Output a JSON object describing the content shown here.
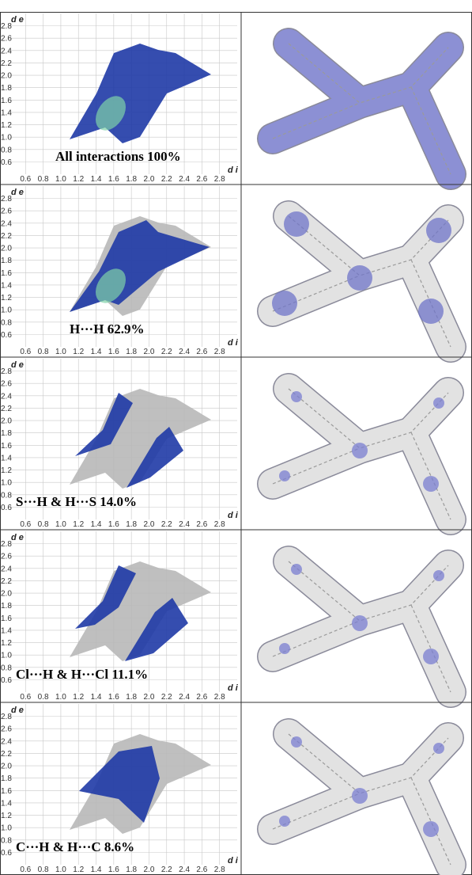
{
  "chart_data": [
    {
      "type": "fingerprint",
      "label": "All interactions 100%",
      "xlabel": "d i",
      "ylabel": "d e",
      "color": "#1f3aa6",
      "highlight_color": "#8c90d4",
      "xlim": [
        0.4,
        3.0
      ],
      "ylim": [
        0.4,
        3.0
      ],
      "xticks": [
        0.6,
        0.8,
        {
          "value": 1,
          "label": "1.0"
        },
        1.2,
        1.4,
        1.6,
        1.8,
        {
          "value": 2,
          "label": "2.0"
        },
        2.2,
        2.4,
        2.6,
        2.8
      ],
      "yticks": [
        0.6,
        0.8,
        {
          "value": 1,
          "label": "1.0"
        },
        1.2,
        1.4,
        1.6,
        1.8,
        {
          "value": 2,
          "label": "2.0"
        },
        2.2,
        2.4,
        2.6,
        2.8
      ],
      "grid": true
    },
    {
      "type": "fingerprint",
      "label": "H···H 62.9%",
      "xlabel": "d i",
      "ylabel": "d e",
      "color": "#1f3aa6",
      "highlight_color": "#6f74c8",
      "xlim": [
        0.4,
        3.0
      ],
      "ylim": [
        0.4,
        3.0
      ],
      "xticks": [
        0.6,
        0.8,
        {
          "value": 1,
          "label": "1.0"
        },
        1.2,
        1.4,
        1.6,
        1.8,
        {
          "value": 2,
          "label": "2.0"
        },
        2.2,
        2.4,
        2.6,
        2.8
      ],
      "yticks": [
        0.6,
        0.8,
        {
          "value": 1,
          "label": "1.0"
        },
        1.2,
        1.4,
        1.6,
        1.8,
        {
          "value": 2,
          "label": "2.0"
        },
        2.2,
        2.4,
        2.6,
        2.8
      ],
      "grid": true
    },
    {
      "type": "fingerprint",
      "label": "S···H & H···S 14.0%",
      "xlabel": "d i",
      "ylabel": "d e",
      "color": "#1f3aa6",
      "highlight_color": "#7a7ed0",
      "xlim": [
        0.4,
        3.0
      ],
      "ylim": [
        0.4,
        3.0
      ],
      "xticks": [
        0.6,
        0.8,
        {
          "value": 1,
          "label": "1.0"
        },
        1.2,
        1.4,
        1.6,
        1.8,
        {
          "value": 2,
          "label": "2.0"
        },
        2.2,
        2.4,
        2.6,
        2.8
      ],
      "yticks": [
        0.6,
        0.8,
        {
          "value": 1,
          "label": "1.0"
        },
        1.2,
        1.4,
        1.6,
        1.8,
        {
          "value": 2,
          "label": "2.0"
        },
        2.2,
        2.4,
        2.6,
        2.8
      ],
      "grid": true
    },
    {
      "type": "fingerprint",
      "label": "Cl···H & H···Cl 11.1%",
      "xlabel": "d i",
      "ylabel": "d e",
      "color": "#1f3aa6",
      "highlight_color": "#7a7ed0",
      "xlim": [
        0.4,
        3.0
      ],
      "ylim": [
        0.4,
        3.0
      ],
      "xticks": [
        0.6,
        0.8,
        {
          "value": 1,
          "label": "1.0"
        },
        1.2,
        1.4,
        1.6,
        1.8,
        {
          "value": 2,
          "label": "2.0"
        },
        2.2,
        2.4,
        2.6,
        2.8
      ],
      "yticks": [
        0.6,
        0.8,
        {
          "value": 1,
          "label": "1.0"
        },
        1.2,
        1.4,
        1.6,
        1.8,
        {
          "value": 2,
          "label": "2.0"
        },
        2.2,
        2.4,
        2.6,
        2.8
      ],
      "grid": true
    },
    {
      "type": "fingerprint",
      "label": "C···H & H···C 8.6%",
      "xlabel": "d i",
      "ylabel": "d e",
      "color": "#1f3aa6",
      "highlight_color": "#7a7ed0",
      "xlim": [
        0.4,
        3.0
      ],
      "ylim": [
        0.4,
        3.0
      ],
      "xticks": [
        0.6,
        0.8,
        {
          "value": 1,
          "label": "1.0"
        },
        1.2,
        1.4,
        1.6,
        1.8,
        {
          "value": 2,
          "label": "2.0"
        },
        2.2,
        2.4,
        2.6,
        2.8
      ],
      "yticks": [
        0.6,
        0.8,
        {
          "value": 1,
          "label": "1.0"
        },
        1.2,
        1.4,
        1.6,
        1.8,
        {
          "value": 2,
          "label": "2.0"
        },
        2.2,
        2.4,
        2.6,
        2.8
      ],
      "grid": true
    }
  ]
}
